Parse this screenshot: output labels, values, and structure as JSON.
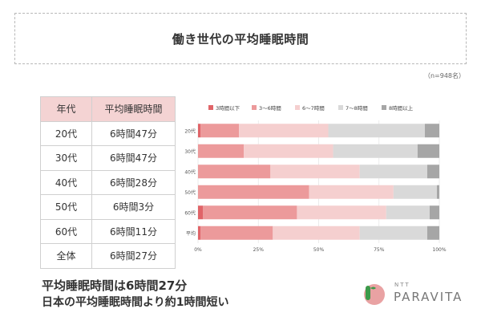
{
  "title": "働き世代の平均睡眠時間",
  "sample_note": "（n=948名）",
  "table": {
    "headers": [
      "年代",
      "平均睡眠時間"
    ],
    "rows": [
      [
        "20代",
        "6時間47分"
      ],
      [
        "30代",
        "6時間47分"
      ],
      [
        "40代",
        "6時間28分"
      ],
      [
        "50代",
        "6時間3分"
      ],
      [
        "60代",
        "6時間11分"
      ],
      [
        "全体",
        "6時間27分"
      ]
    ]
  },
  "chart_data": {
    "type": "bar",
    "orientation": "horizontal",
    "stacked": true,
    "categories": [
      "20代",
      "30代",
      "40代",
      "50代",
      "60代",
      "平均"
    ],
    "series": [
      {
        "name": "3時間以下",
        "color": "#e06468",
        "values": [
          1,
          0,
          0,
          0,
          2,
          1
        ]
      },
      {
        "name": "3～6時間",
        "color": "#ec9a9b",
        "values": [
          16,
          19,
          30,
          46,
          39,
          30
        ]
      },
      {
        "name": "6～7時間",
        "color": "#f5cfcf",
        "values": [
          37,
          37,
          37,
          35,
          37,
          36
        ]
      },
      {
        "name": "7～8時間",
        "color": "#d9d9d9",
        "values": [
          40,
          35,
          28,
          18,
          18,
          28
        ]
      },
      {
        "name": "8時間以上",
        "color": "#a6a6a6",
        "values": [
          6,
          9,
          5,
          1,
          4,
          5
        ]
      }
    ],
    "x_ticks": [
      "0%",
      "25%",
      "50%",
      "75%",
      "100%"
    ],
    "xlim": [
      0,
      100
    ],
    "grid": true,
    "legend": "top"
  },
  "conclusion": {
    "line1": "平均睡眠時間は6時間27分",
    "line2": "日本の平均睡眠時間より約1時間短い"
  },
  "logo": {
    "small": "NTT",
    "brand": "PARAVITA",
    "colors": {
      "red": "#e9a2a3",
      "green": "#3c9a4a"
    }
  }
}
